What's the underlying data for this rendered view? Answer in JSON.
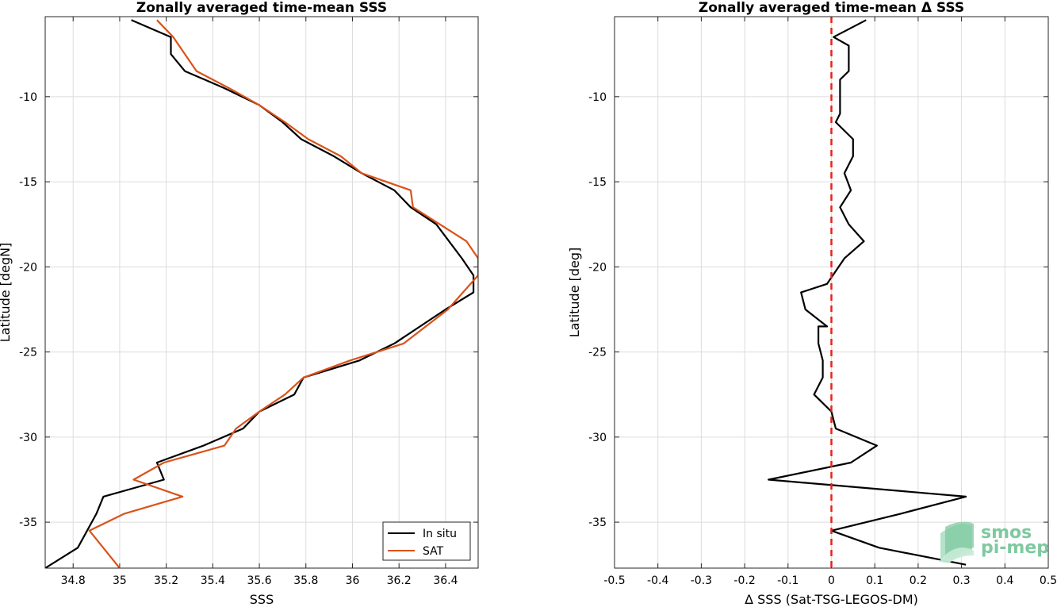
{
  "chart_data": [
    {
      "type": "line",
      "title": "Zonally averaged time-mean SSS",
      "xlabel": "SSS",
      "ylabel": "Latitude [degN]",
      "xlim": [
        34.68,
        36.54
      ],
      "ylim": [
        -37.7,
        -5.3
      ],
      "xticks": [
        34.8,
        35,
        35.2,
        35.4,
        35.6,
        35.8,
        36,
        36.2,
        36.4
      ],
      "xtick_labels": [
        "34.8",
        "35",
        "35.2",
        "35.4",
        "35.6",
        "35.8",
        "36",
        "36.2",
        "36.4"
      ],
      "yticks": [
        -10,
        -15,
        -20,
        -25,
        -30,
        -35
      ],
      "ytick_labels": [
        "-10",
        "-15",
        "-20",
        "-25",
        "-30",
        "-35"
      ],
      "grid": true,
      "legend_position": "bottom-right",
      "series": [
        {
          "name": "In situ",
          "color": "#000000",
          "x": [
            35.05,
            35.22,
            35.22,
            35.28,
            35.45,
            35.6,
            35.7,
            35.78,
            35.92,
            36.04,
            36.18,
            36.25,
            36.36,
            36.47,
            36.52,
            36.52,
            36.4,
            36.18,
            36.03,
            35.79,
            35.75,
            35.6,
            35.53,
            35.36,
            35.16,
            35.19,
            34.93,
            34.9,
            34.82,
            34.68
          ],
          "y": [
            -5.5,
            -6.5,
            -7.5,
            -8.5,
            -9.5,
            -10.5,
            -11.5,
            -12.5,
            -13.5,
            -14.5,
            -15.5,
            -16.5,
            -17.5,
            -19.5,
            -20.5,
            -21.5,
            -22.5,
            -24.5,
            -25.5,
            -26.5,
            -27.5,
            -28.5,
            -29.5,
            -30.5,
            -31.5,
            -32.5,
            -33.5,
            -34.5,
            -36.5,
            -37.7
          ]
        },
        {
          "name": "SAT",
          "color": "#d95319",
          "x": [
            35.16,
            35.23,
            35.33,
            35.47,
            35.6,
            35.71,
            35.81,
            35.95,
            36.04,
            36.25,
            36.26,
            36.49,
            36.54,
            36.54,
            36.41,
            36.22,
            35.99,
            35.79,
            35.71,
            35.6,
            35.5,
            35.45,
            35.19,
            35.06,
            35.27,
            35.02,
            34.87,
            35.0
          ],
          "y": [
            -5.5,
            -6.5,
            -8.5,
            -9.5,
            -10.5,
            -11.5,
            -12.5,
            -13.5,
            -14.5,
            -15.5,
            -16.5,
            -18.5,
            -19.5,
            -20.5,
            -22.5,
            -24.5,
            -25.5,
            -26.5,
            -27.5,
            -28.5,
            -29.5,
            -30.5,
            -31.5,
            -32.5,
            -33.5,
            -34.5,
            -35.5,
            -37.7
          ]
        }
      ]
    },
    {
      "type": "line",
      "title": "Zonally averaged time-mean Δ SSS",
      "xlabel": "Δ SSS (Sat-TSG-LEGOS-DM)",
      "ylabel": "Latitude [deg]",
      "xlim": [
        -0.5,
        0.5
      ],
      "ylim": [
        -37.7,
        -5.3
      ],
      "xticks": [
        -0.5,
        -0.4,
        -0.3,
        -0.2,
        -0.1,
        0,
        0.1,
        0.2,
        0.3,
        0.4,
        0.5
      ],
      "xtick_labels": [
        "-0.5",
        "-0.4",
        "-0.3",
        "-0.2",
        "-0.1",
        "0",
        "0.1",
        "0.2",
        "0.3",
        "0.4",
        "0.5"
      ],
      "yticks": [
        -10,
        -15,
        -20,
        -25,
        -30,
        -35
      ],
      "ytick_labels": [
        "-10",
        "-15",
        "-20",
        "-25",
        "-30",
        "-35"
      ],
      "grid": true,
      "series": [
        {
          "color": "#000000",
          "x": [
            0.08,
            0.005,
            0.04,
            0.04,
            0.02,
            0.02,
            0.02,
            0.01,
            0.05,
            0.05,
            0.03,
            0.045,
            0.02,
            0.04,
            0.075,
            0.03,
            -0.01,
            -0.07,
            -0.06,
            -0.01,
            -0.03,
            -0.03,
            -0.02,
            -0.02,
            -0.04,
            0.0,
            0.01,
            0.105,
            0.045,
            -0.145,
            0.31,
            0.16,
            0.0,
            0.11,
            0.31
          ],
          "y": [
            -5.5,
            -6.5,
            -7.0,
            -8.5,
            -9.0,
            -10.5,
            -11.0,
            -11.5,
            -12.5,
            -13.5,
            -14.5,
            -15.5,
            -16.5,
            -17.5,
            -18.5,
            -19.5,
            -21.0,
            -21.5,
            -22.5,
            -23.5,
            -23.5,
            -24.5,
            -25.5,
            -26.5,
            -27.5,
            -28.5,
            -29.5,
            -30.5,
            -31.5,
            -32.5,
            -33.5,
            -34.5,
            -35.5,
            -36.5,
            -37.5
          ]
        }
      ],
      "reference_line": {
        "x": 0,
        "color": "#e8231c",
        "style": "dashed"
      }
    }
  ],
  "logo": {
    "line1": "smos",
    "line2": "pi-mep"
  },
  "colors": {
    "in_situ": "#000000",
    "sat": "#d95319",
    "zero_line": "#e8231c",
    "grid": "#dcdcdc",
    "logo": "#7fc9a0"
  }
}
